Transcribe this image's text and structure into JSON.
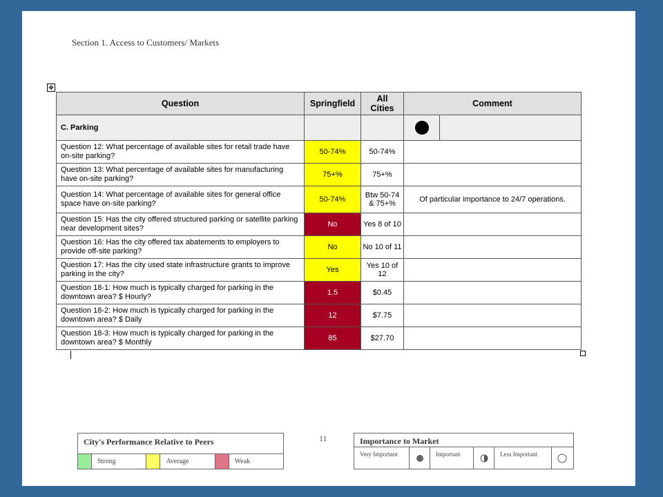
{
  "section_title": "Section 1. Access to Customers/ Markets",
  "table": {
    "headers": [
      "Question",
      "Springfield",
      "All Cities",
      "Comment"
    ],
    "section_label": "C. Parking",
    "rows": [
      {
        "question": "Question 12: What percentage of available sites for retail trade have on-site parking?",
        "springfield": "50-74%",
        "all_cities": "50-74%",
        "comment": "",
        "rating": "yellow"
      },
      {
        "question": "Question 13: What percentage of available sites for manufacturing have on-site parking?",
        "springfield": "75+%",
        "all_cities": "75+%",
        "comment": "",
        "rating": "yellow"
      },
      {
        "question": "Question 14: What percentage of available sites for general office space have on-site parking?",
        "springfield": "50-74%",
        "all_cities": "Btw 50-74 & 75+%",
        "comment": "Of particular importance to 24/7 operations.",
        "rating": "yellow"
      },
      {
        "question": "Question 15: Has the city offered structured parking or satellite parking near development sites?",
        "springfield": "No",
        "all_cities": "Yes 8 of 10",
        "comment": "",
        "rating": "red"
      },
      {
        "question": "Question 16: Has the city offered tax abatements to employers to provide off-site parking?",
        "springfield": "No",
        "all_cities": "No 10 of 11",
        "comment": "",
        "rating": "yellow"
      },
      {
        "question": "Question 17: Has the city used state infrastructure grants to improve parking in the city?",
        "springfield": "Yes",
        "all_cities": "Yes 10 of 12",
        "comment": "",
        "rating": "yellow"
      },
      {
        "question": "Question 18-1: How much is typically charged for parking in the downtown area?  $ Hourly?",
        "springfield": "1.5",
        "all_cities": "$0.45",
        "comment": "",
        "rating": "red"
      },
      {
        "question": "Question 18-2: How much is typically charged for parking in the downtown area?  $ Daily",
        "springfield": "12",
        "all_cities": "$7.75",
        "comment": "",
        "rating": "red"
      },
      {
        "question": "Question 18-3: How much is typically charged for parking in the downtown area?  $ Monthly",
        "springfield": "85",
        "all_cities": "$27.70",
        "comment": "",
        "rating": "red"
      }
    ]
  },
  "page_number": "11",
  "performance_legend": {
    "title": "City's Performance Relative to Peers",
    "items": [
      {
        "label": "Strong",
        "color": "#99ee99"
      },
      {
        "label": "Average",
        "color": "#ffff66"
      },
      {
        "label": "Weak",
        "color": "#dd7788"
      }
    ]
  },
  "importance_legend": {
    "title": "Importance to Market",
    "items": [
      {
        "label": "Very Important",
        "icon": "full-circle-icon"
      },
      {
        "label": "Important",
        "icon": "half-circle-icon"
      },
      {
        "label": "Less Important",
        "icon": "empty-circle-icon"
      }
    ]
  },
  "colors": {
    "yellow": "#ffff00",
    "red": "#a50021",
    "background": "#336699"
  }
}
